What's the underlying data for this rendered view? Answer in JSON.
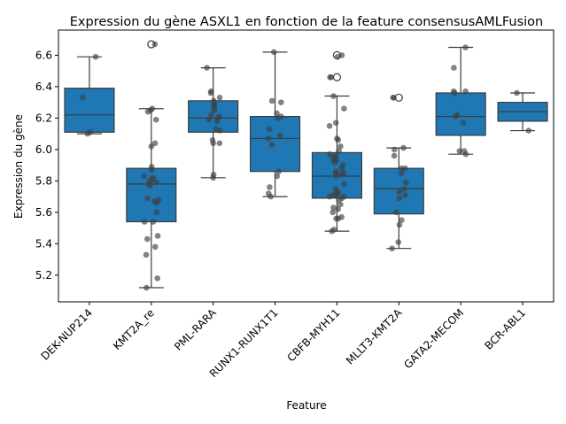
{
  "chart_data": {
    "type": "box",
    "title": "Expression du gène ASXL1 en fonction de la feature consensusAMLFusion",
    "xlabel": "Feature",
    "ylabel": "Expression du gène",
    "ylim": [
      5.03,
      6.76
    ],
    "yticks": [
      "5.2",
      "5.4",
      "5.6",
      "5.8",
      "6.0",
      "6.2",
      "6.4",
      "6.6"
    ],
    "grid": false,
    "box_color": "#1f77b4",
    "point_color": "#404040",
    "categories": [
      "DEK-NUP214",
      "KMT2A_re",
      "PML-RARA",
      "RUNX1-RUNX1T1",
      "CBFB-MYH11",
      "MLLT3-KMT2A",
      "GATA2-MECOM",
      "BCR-ABL1"
    ],
    "boxes": [
      {
        "category": "DEK-NUP214",
        "whisker_low": 6.1,
        "q1": 6.11,
        "median": 6.22,
        "q3": 6.39,
        "whisker_high": 6.59,
        "outliers": []
      },
      {
        "category": "KMT2A_re",
        "whisker_low": 5.12,
        "q1": 5.54,
        "median": 5.78,
        "q3": 5.88,
        "whisker_high": 6.26,
        "outliers": [
          6.67
        ]
      },
      {
        "category": "PML-RARA",
        "whisker_low": 5.82,
        "q1": 6.11,
        "median": 6.2,
        "q3": 6.31,
        "whisker_high": 6.52,
        "outliers": []
      },
      {
        "category": "RUNX1-RUNX1T1",
        "whisker_low": 5.7,
        "q1": 5.86,
        "median": 6.07,
        "q3": 6.21,
        "whisker_high": 6.62,
        "outliers": []
      },
      {
        "category": "CBFB-MYH11",
        "whisker_low": 5.48,
        "q1": 5.69,
        "median": 5.83,
        "q3": 5.98,
        "whisker_high": 6.34,
        "outliers": [
          6.46,
          6.6
        ]
      },
      {
        "category": "MLLT3-KMT2A",
        "whisker_low": 5.37,
        "q1": 5.59,
        "median": 5.75,
        "q3": 5.88,
        "whisker_high": 6.01,
        "outliers": [
          6.33
        ]
      },
      {
        "category": "GATA2-MECOM",
        "whisker_low": 5.97,
        "q1": 6.09,
        "median": 6.21,
        "q3": 6.36,
        "whisker_high": 6.65,
        "outliers": []
      },
      {
        "category": "BCR-ABL1",
        "whisker_low": 6.12,
        "q1": 6.18,
        "median": 6.24,
        "q3": 6.3,
        "whisker_high": 6.36,
        "outliers": []
      }
    ],
    "points": [
      [
        6.59,
        6.33,
        6.11,
        6.1
      ],
      [
        6.67,
        6.26,
        6.25,
        6.24,
        6.19,
        6.04,
        6.02,
        5.89,
        5.87,
        5.83,
        5.82,
        5.81,
        5.8,
        5.79,
        5.78,
        5.77,
        5.69,
        5.68,
        5.67,
        5.66,
        5.6,
        5.54,
        5.54,
        5.45,
        5.43,
        5.38,
        5.33,
        5.18,
        5.12
      ],
      [
        6.52,
        6.37,
        6.36,
        6.33,
        6.31,
        6.3,
        6.28,
        6.27,
        6.25,
        6.22,
        6.21,
        6.2,
        6.19,
        6.18,
        6.13,
        6.12,
        6.06,
        6.04,
        6.04,
        5.84,
        5.82
      ],
      [
        6.62,
        6.31,
        6.3,
        6.23,
        6.21,
        6.2,
        6.13,
        6.09,
        6.07,
        6.03,
        5.86,
        5.83,
        5.76,
        5.72,
        5.7
      ],
      [
        6.6,
        6.59,
        6.46,
        6.46,
        6.34,
        6.26,
        6.17,
        6.15,
        6.07,
        6.06,
        6.02,
        5.99,
        5.97,
        5.96,
        5.95,
        5.94,
        5.93,
        5.92,
        5.9,
        5.88,
        5.86,
        5.85,
        5.85,
        5.84,
        5.83,
        5.78,
        5.75,
        5.73,
        5.72,
        5.71,
        5.71,
        5.7,
        5.7,
        5.69,
        5.68,
        5.65,
        5.63,
        5.62,
        5.6,
        5.57,
        5.56,
        5.56,
        5.49,
        5.48
      ],
      [
        6.33,
        6.33,
        6.01,
        6.0,
        5.96,
        5.88,
        5.88,
        5.85,
        5.79,
        5.75,
        5.73,
        5.71,
        5.69,
        5.6,
        5.55,
        5.52,
        5.41,
        5.37
      ],
      [
        6.65,
        6.52,
        6.37,
        6.37,
        6.36,
        6.22,
        6.21,
        6.17,
        5.99,
        5.99,
        5.97
      ],
      [
        6.36,
        6.12
      ]
    ],
    "outlier_count_note": ""
  }
}
